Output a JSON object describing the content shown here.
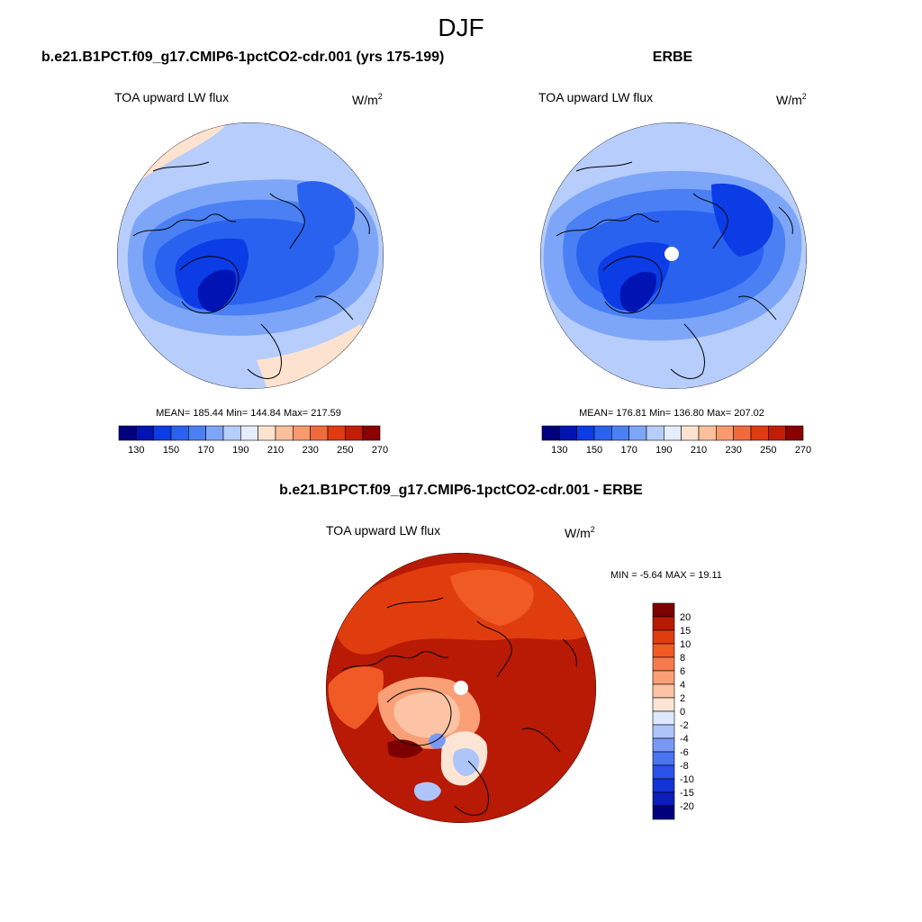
{
  "figure": {
    "title": "DJF",
    "background": "#ffffff"
  },
  "colors": {
    "abs_levels": [
      "#00007f",
      "#0014b4",
      "#0b3ce6",
      "#2a62f0",
      "#4a80f4",
      "#7ea6f8",
      "#b7cdfb",
      "#e4eefd",
      "#fde3cf",
      "#fbbf9b",
      "#f89a6e",
      "#f06a3e",
      "#e23a12",
      "#c21d06",
      "#8b0000"
    ],
    "diff_levels": [
      "#00007f",
      "#0a1fb8",
      "#1434d6",
      "#2a52e8",
      "#4a74f0",
      "#7899f6",
      "#aec5fa",
      "#dde8fd",
      "#fde5d5",
      "#fcc4a4",
      "#fa9f76",
      "#f77a4e",
      "#ef5a25",
      "#e03d0e",
      "#b81a05",
      "#7c0000"
    ],
    "coast": "#000000",
    "missing": "#ffffff"
  },
  "chart_data": [
    {
      "type": "heatmap",
      "projection": "north-polar-stereographic",
      "subtitle": "b.e21.B1PCT.f09_g17.CMIP6-1pctCO2-cdr.001 (yrs 175-199)",
      "left_label": "TOA upward LW flux",
      "units_base": "W/m",
      "units_exp": "2",
      "stats_text": "MEAN= 185.44  Min= 144.84  Max= 217.59",
      "stats": {
        "mean": 185.44,
        "min": 144.84,
        "max": 217.59
      },
      "levels": [
        130,
        140,
        150,
        160,
        170,
        180,
        190,
        200,
        210,
        220,
        230,
        240,
        250,
        260,
        270
      ],
      "tick_labels": [
        "130",
        "150",
        "170",
        "190",
        "210",
        "230",
        "250",
        "270"
      ],
      "colorbar": "horizontal"
    },
    {
      "type": "heatmap",
      "projection": "north-polar-stereographic",
      "subtitle": "ERBE",
      "left_label": "TOA upward LW flux",
      "units_base": "W/m",
      "units_exp": "2",
      "stats_text": "MEAN= 176.81  Min= 136.80  Max= 207.02",
      "stats": {
        "mean": 176.81,
        "min": 136.8,
        "max": 207.02
      },
      "levels": [
        130,
        140,
        150,
        160,
        170,
        180,
        190,
        200,
        210,
        220,
        230,
        240,
        250,
        260,
        270
      ],
      "tick_labels": [
        "130",
        "150",
        "170",
        "190",
        "210",
        "230",
        "250",
        "270"
      ],
      "colorbar": "horizontal",
      "pole_missing": true
    },
    {
      "type": "heatmap",
      "projection": "north-polar-stereographic",
      "subtitle": "b.e21.B1PCT.f09_g17.CMIP6-1pctCO2-cdr.001 - ERBE",
      "left_label": "TOA upward LW flux",
      "units_base": "W/m",
      "units_exp": "2",
      "stats_text": "MIN =  -5.64 MAX =  19.11",
      "stats": {
        "min": -5.64,
        "max": 19.11
      },
      "levels": [
        -20,
        -15,
        -10,
        -8,
        -6,
        -4,
        -2,
        0,
        2,
        4,
        6,
        8,
        10,
        15,
        20
      ],
      "tick_labels": [
        "20",
        "15",
        "10",
        "8",
        "6",
        "4",
        "2",
        "0",
        "-2",
        "-4",
        "-6",
        "-8",
        "-10",
        "-15",
        "-20"
      ],
      "colorbar": "vertical",
      "pole_missing": true
    }
  ]
}
